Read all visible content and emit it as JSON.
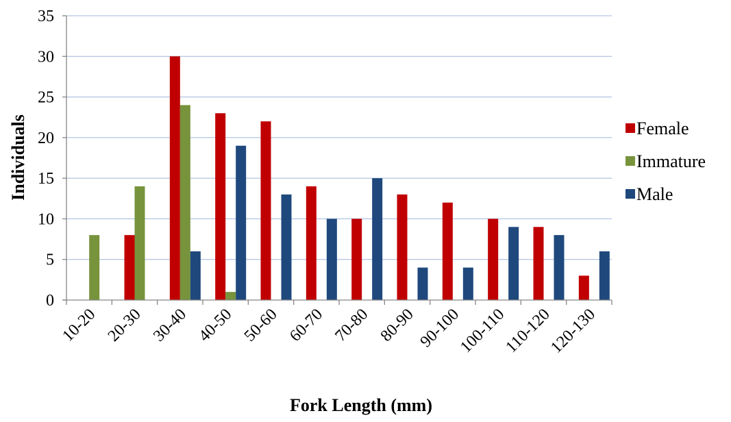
{
  "chart_data": {
    "type": "bar",
    "categories": [
      "10-20",
      "20-30",
      "30-40",
      "40-50",
      "50-60",
      "60-70",
      "70-80",
      "80-90",
      "90-100",
      "100-110",
      "110-120",
      "120-130"
    ],
    "series": [
      {
        "name": "Female",
        "color": "#C00000",
        "values": [
          0,
          8,
          30,
          23,
          22,
          14,
          10,
          13,
          12,
          10,
          9,
          3
        ]
      },
      {
        "name": "Immature",
        "color": "#77933C",
        "values": [
          8,
          14,
          24,
          1,
          0,
          0,
          0,
          0,
          0,
          0,
          0,
          0
        ]
      },
      {
        "name": "Male",
        "color": "#1F497D",
        "values": [
          0,
          0,
          6,
          19,
          13,
          10,
          15,
          4,
          4,
          9,
          8,
          6
        ]
      }
    ],
    "xlabel": "Fork Length (mm)",
    "ylabel": "Individuals",
    "ylim": [
      0,
      35
    ],
    "yticks": [
      0,
      5,
      10,
      15,
      20,
      25,
      30,
      35
    ],
    "grid": true,
    "legend_position": "right"
  }
}
